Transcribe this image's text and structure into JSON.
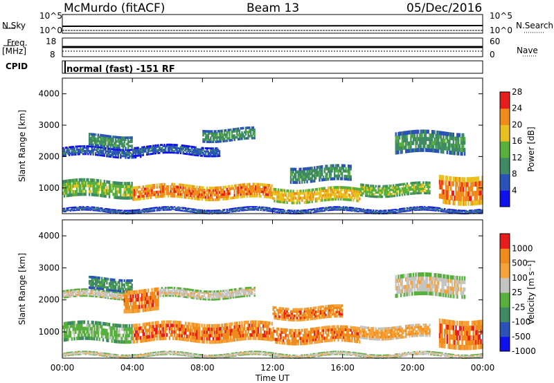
{
  "header": {
    "station": "McMurdo (fitACF)",
    "beam": "Beam 13",
    "date": "05/Dec/2016"
  },
  "top_panels": {
    "nsky_label": "N.Sky",
    "nsearch_label": "N.Search",
    "scale_hi": "10^5",
    "scale_lo": "10^0",
    "freq_label": "Freq.",
    "freq_unit": "[MHz]",
    "freq_ticks": [
      "18",
      "8"
    ],
    "nave_label": "Nave",
    "nave_ticks": [
      "60",
      "0"
    ],
    "cpid_label": "CPID",
    "cpid_text": "normal (fast) -151 RF"
  },
  "x_axis": {
    "label": "Time UT",
    "ticks": [
      "00:00",
      "04:00",
      "08:00",
      "12:00",
      "16:00",
      "20:00",
      "00:00"
    ]
  },
  "colors": {
    "blue": "#1010ee",
    "darkblue": "#2a52b8",
    "seagreen": "#3f8a64",
    "green": "#58b03c",
    "yellow": "#e8c020",
    "orange": "#f08a1a",
    "red": "#e81c1c",
    "gray": "#c4c4c0",
    "lightorange": "#f6a23a"
  },
  "chart_data": [
    {
      "type": "heatmap",
      "title": "",
      "ylabel": "Slant Range [km]",
      "xlabel": "",
      "ylim": [
        180,
        4500
      ],
      "yticks": [
        "1000",
        "2000",
        "3000",
        "4000"
      ],
      "colorbar": {
        "label": "Power [dB]",
        "ticks": [
          "4",
          "8",
          "12",
          "16",
          "20",
          "24",
          "28"
        ],
        "colors": [
          "#1010ee",
          "#2a52b8",
          "#3f8a64",
          "#58b03c",
          "#e8c020",
          "#f08a1a",
          "#e81c1c"
        ]
      },
      "bands": [
        {
          "t0": 0.0,
          "t1": 4.0,
          "r_lo": 700,
          "r_hi": 1250,
          "level": 3
        },
        {
          "t0": 4.0,
          "t1": 12.0,
          "r_lo": 650,
          "r_hi": 1100,
          "level": 5
        },
        {
          "t0": 12.0,
          "t1": 17.0,
          "r_lo": 550,
          "r_hi": 1000,
          "level": 4
        },
        {
          "t0": 17.0,
          "t1": 21.0,
          "r_lo": 750,
          "r_hi": 1150,
          "level": 3
        },
        {
          "t0": 21.5,
          "t1": 24.0,
          "r_lo": 500,
          "r_hi": 1400,
          "level": 5
        },
        {
          "t0": 0.0,
          "t1": 4.5,
          "r_lo": 2000,
          "r_hi": 2300,
          "level": 1
        },
        {
          "t0": 1.5,
          "t1": 4.0,
          "r_lo": 2300,
          "r_hi": 2700,
          "level": 2
        },
        {
          "t0": 4.0,
          "t1": 9.0,
          "r_lo": 2050,
          "r_hi": 2350,
          "level": 1
        },
        {
          "t0": 8.0,
          "t1": 11.0,
          "r_lo": 2500,
          "r_hi": 2900,
          "level": 2
        },
        {
          "t0": 19.0,
          "t1": 23.0,
          "r_lo": 2100,
          "r_hi": 2800,
          "level": 2
        },
        {
          "t0": 13.0,
          "t1": 16.5,
          "r_lo": 1200,
          "r_hi": 1700,
          "level": 2
        },
        {
          "t0": 0.0,
          "t1": 24.0,
          "r_lo": 230,
          "r_hi": 360,
          "level": 1
        }
      ]
    },
    {
      "type": "heatmap",
      "title": "",
      "ylabel": "Slant Range [km]",
      "xlabel": "Time UT",
      "ylim": [
        180,
        4500
      ],
      "yticks": [
        "1000",
        "2000",
        "3000",
        "4000"
      ],
      "colorbar": {
        "label": "Velocity [m s^-1]",
        "ticks": [
          "1000",
          "500",
          "100",
          "25",
          "-25",
          "-100",
          "-500",
          "-1000"
        ],
        "colors": [
          "#1010ee",
          "#2a52b8",
          "#3f8a64",
          "#58b03c",
          "#c4c4c0",
          "#f6a23a",
          "#f08a1a",
          "#e81c1c"
        ]
      },
      "bands": [
        {
          "t0": 0.0,
          "t1": 4.0,
          "r_lo": 700,
          "r_hi": 1300,
          "level": 3
        },
        {
          "t0": 4.0,
          "t1": 12.0,
          "r_lo": 700,
          "r_hi": 1300,
          "level": 6
        },
        {
          "t0": 12.0,
          "t1": 17.0,
          "r_lo": 650,
          "r_hi": 1150,
          "level": 6
        },
        {
          "t0": 17.0,
          "t1": 21.0,
          "r_lo": 800,
          "r_hi": 1200,
          "level": 5
        },
        {
          "t0": 21.5,
          "t1": 24.0,
          "r_lo": 500,
          "r_hi": 1400,
          "level": 6
        },
        {
          "t0": 0.0,
          "t1": 4.0,
          "r_lo": 2050,
          "r_hi": 2300,
          "level": 4
        },
        {
          "t0": 1.5,
          "t1": 4.0,
          "r_lo": 2300,
          "r_hi": 2700,
          "level": 2
        },
        {
          "t0": 3.5,
          "t1": 5.5,
          "r_lo": 1650,
          "r_hi": 2350,
          "level": 6
        },
        {
          "t0": 5.5,
          "t1": 11.0,
          "r_lo": 2050,
          "r_hi": 2350,
          "level": 4
        },
        {
          "t0": 19.0,
          "t1": 23.0,
          "r_lo": 2100,
          "r_hi": 2800,
          "level": 4
        },
        {
          "t0": 12.0,
          "t1": 16.0,
          "r_lo": 1400,
          "r_hi": 1800,
          "level": 6
        },
        {
          "t0": 0.0,
          "t1": 24.0,
          "r_lo": 230,
          "r_hi": 350,
          "level": 4
        }
      ]
    }
  ]
}
